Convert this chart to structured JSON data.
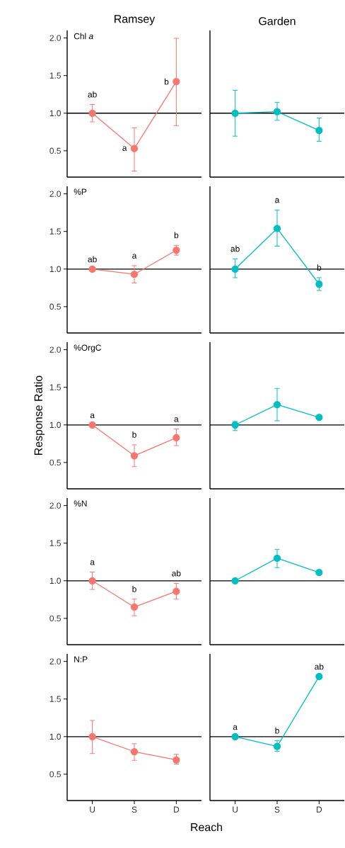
{
  "chart_data": [
    {
      "type": "line",
      "title": "Ramsey",
      "subtitle": "Chl *a*",
      "categories": [
        "U",
        "S",
        "D"
      ],
      "values": [
        1.0,
        0.53,
        1.42
      ],
      "errors": [
        [
          0.88,
          1.12
        ],
        [
          0.225,
          0.81
        ],
        [
          0.83,
          2.0
        ]
      ],
      "color": "#f8766d",
      "ylim": [
        0.15,
        2.1
      ],
      "yticks": [
        {
          "value": 0.5,
          "label": "0.5"
        },
        {
          "value": 1,
          "label": "1.0"
        },
        {
          "value": 1.5,
          "label": "1.5"
        },
        {
          "value": 2,
          "label": "2.0"
        }
      ],
      "ref_lines": [
        {
          "axis": "y",
          "value": 1
        }
      ],
      "marker": "circle",
      "line_style": "solid",
      "tick_labels": "y",
      "annotations": [
        {
          "text": "ab",
          "x": "U",
          "y": 1.0
        },
        {
          "text": "a",
          "x": "S",
          "y": 0.53
        },
        {
          "text": "b",
          "x": "D",
          "y": 1.42
        }
      ]
    },
    {
      "type": "line",
      "title": "Garden",
      "categories": [
        "U",
        "S",
        "D"
      ],
      "values": [
        1.0,
        1.02,
        0.77
      ],
      "errors": [
        [
          0.69,
          1.31
        ],
        [
          0.9,
          1.15
        ],
        [
          0.62,
          0.94
        ]
      ],
      "color": "#00bfc4",
      "ylim": [
        0.15,
        2.1
      ],
      "ref_lines": [
        {
          "axis": "y",
          "value": 1
        }
      ],
      "marker": "circle",
      "line_style": "solid",
      "tick_labels": false
    },
    {
      "type": "line",
      "subtitle": "%P",
      "categories": [
        "U",
        "S",
        "D"
      ],
      "values": [
        1.0,
        0.93,
        1.25
      ],
      "errors": [
        null,
        [
          0.81,
          1.05
        ],
        [
          1.18,
          1.32
        ]
      ],
      "color": "#f8766d",
      "ylim": [
        0.15,
        2.1
      ],
      "yticks": [
        {
          "value": 0.5,
          "label": "0.5"
        },
        {
          "value": 1,
          "label": "1.0"
        },
        {
          "value": 1.5,
          "label": "1.5"
        },
        {
          "value": 2,
          "label": "2.0"
        }
      ],
      "ref_lines": [
        {
          "axis": "y",
          "value": 1
        }
      ],
      "marker": "circle",
      "line_style": "solid",
      "tick_labels": "y",
      "annotations": [
        {
          "text": "ab",
          "x": "U",
          "y": 1.0
        },
        {
          "text": "a",
          "x": "S",
          "y": 0.93
        },
        {
          "text": "b",
          "x": "D",
          "y": 1.25
        }
      ]
    },
    {
      "type": "line",
      "categories": [
        "U",
        "S",
        "D"
      ],
      "values": [
        1.0,
        1.54,
        0.8
      ],
      "errors": [
        [
          0.88,
          1.14
        ],
        [
          1.3,
          1.79
        ],
        [
          0.71,
          0.89
        ]
      ],
      "color": "#00bfc4",
      "ylim": [
        0.15,
        2.1
      ],
      "ref_lines": [
        {
          "axis": "y",
          "value": 1
        }
      ],
      "marker": "circle",
      "line_style": "solid",
      "tick_labels": false,
      "annotations": [
        {
          "text": "ab",
          "x": "U",
          "y": 1.0
        },
        {
          "text": "a",
          "x": "S",
          "y": 1.79
        },
        {
          "text": "b",
          "x": "D",
          "y": 0.8
        }
      ]
    },
    {
      "type": "line",
      "subtitle": "%OrgC",
      "ylabel": "Response Ratio",
      "categories": [
        "U",
        "S",
        "D"
      ],
      "values": [
        1.0,
        0.59,
        0.83
      ],
      "errors": [
        null,
        [
          0.44,
          0.74
        ],
        [
          0.72,
          0.95
        ]
      ],
      "color": "#f8766d",
      "ylim": [
        0.15,
        2.1
      ],
      "yticks": [
        {
          "value": 0.5,
          "label": "0.5"
        },
        {
          "value": 1,
          "label": "1.0"
        },
        {
          "value": 1.5,
          "label": "1.5"
        },
        {
          "value": 2,
          "label": "2.0"
        }
      ],
      "ref_lines": [
        {
          "axis": "y",
          "value": 1
        }
      ],
      "marker": "circle",
      "line_style": "solid",
      "tick_labels": "y",
      "annotations": [
        {
          "text": "a",
          "x": "U",
          "y": 1.0
        },
        {
          "text": "b",
          "x": "S",
          "y": 0.59
        },
        {
          "text": "a",
          "x": "D",
          "y": 0.83
        }
      ]
    },
    {
      "type": "line",
      "categories": [
        "U",
        "S",
        "D"
      ],
      "values": [
        1.0,
        1.27,
        1.1
      ],
      "errors": [
        [
          0.92,
          1.05
        ],
        [
          1.05,
          1.49
        ],
        null
      ],
      "color": "#00bfc4",
      "ylim": [
        0.15,
        2.1
      ],
      "ref_lines": [
        {
          "axis": "y",
          "value": 1
        }
      ],
      "marker": "circle",
      "line_style": "solid",
      "tick_labels": false
    },
    {
      "type": "line",
      "subtitle": "%N",
      "categories": [
        "U",
        "S",
        "D"
      ],
      "values": [
        1.0,
        0.65,
        0.86
      ],
      "errors": [
        [
          0.88,
          1.12
        ],
        [
          0.53,
          0.76
        ],
        [
          0.75,
          0.97
        ]
      ],
      "color": "#f8766d",
      "ylim": [
        0.15,
        2.1
      ],
      "yticks": [
        {
          "value": 0.5,
          "label": "0.5"
        },
        {
          "value": 1,
          "label": "1.0"
        },
        {
          "value": 1.5,
          "label": "1.5"
        },
        {
          "value": 2,
          "label": "2.0"
        }
      ],
      "ref_lines": [
        {
          "axis": "y",
          "value": 1
        }
      ],
      "marker": "circle",
      "line_style": "solid",
      "tick_labels": "y",
      "annotations": [
        {
          "text": "a",
          "x": "U",
          "y": 1.0
        },
        {
          "text": "b",
          "x": "S",
          "y": 0.65
        },
        {
          "text": "ab",
          "x": "D",
          "y": 0.86
        }
      ]
    },
    {
      "type": "line",
      "categories": [
        "U",
        "S",
        "D"
      ],
      "values": [
        1.0,
        1.3,
        1.11
      ],
      "errors": [
        null,
        [
          1.17,
          1.42
        ],
        null
      ],
      "color": "#00bfc4",
      "ylim": [
        0.15,
        2.1
      ],
      "ref_lines": [
        {
          "axis": "y",
          "value": 1
        }
      ],
      "marker": "circle",
      "line_style": "solid",
      "tick_labels": false
    },
    {
      "type": "line",
      "subtitle": "N:P",
      "xlabel": "Reach",
      "categories": [
        "U",
        "S",
        "D"
      ],
      "values": [
        1.0,
        0.8,
        0.69
      ],
      "errors": [
        [
          0.77,
          1.22
        ],
        [
          0.68,
          0.91
        ],
        [
          0.63,
          0.77
        ]
      ],
      "color": "#f8766d",
      "ylim": [
        0.15,
        2.1
      ],
      "yticks": [
        {
          "value": 0.5,
          "label": "0.5"
        },
        {
          "value": 1,
          "label": "1.0"
        },
        {
          "value": 1.5,
          "label": "1.5"
        },
        {
          "value": 2,
          "label": "2.0"
        }
      ],
      "ref_lines": [
        {
          "axis": "y",
          "value": 1
        }
      ],
      "marker": "circle",
      "line_style": "solid"
    },
    {
      "type": "line",
      "categories": [
        "U",
        "S",
        "D"
      ],
      "values": [
        1.0,
        0.87,
        1.8
      ],
      "errors": [
        null,
        [
          0.8,
          0.95
        ],
        null
      ],
      "color": "#00bfc4",
      "ylim": [
        0.15,
        2.1
      ],
      "ref_lines": [
        {
          "axis": "y",
          "value": 1
        }
      ],
      "marker": "circle",
      "line_style": "solid",
      "tick_labels": "x",
      "annotations": [
        {
          "text": "a",
          "x": "U",
          "y": 1.0
        },
        {
          "text": "b",
          "x": "S",
          "y": 0.87
        },
        {
          "text": "ab",
          "x": "D",
          "y": 1.8
        }
      ]
    }
  ]
}
